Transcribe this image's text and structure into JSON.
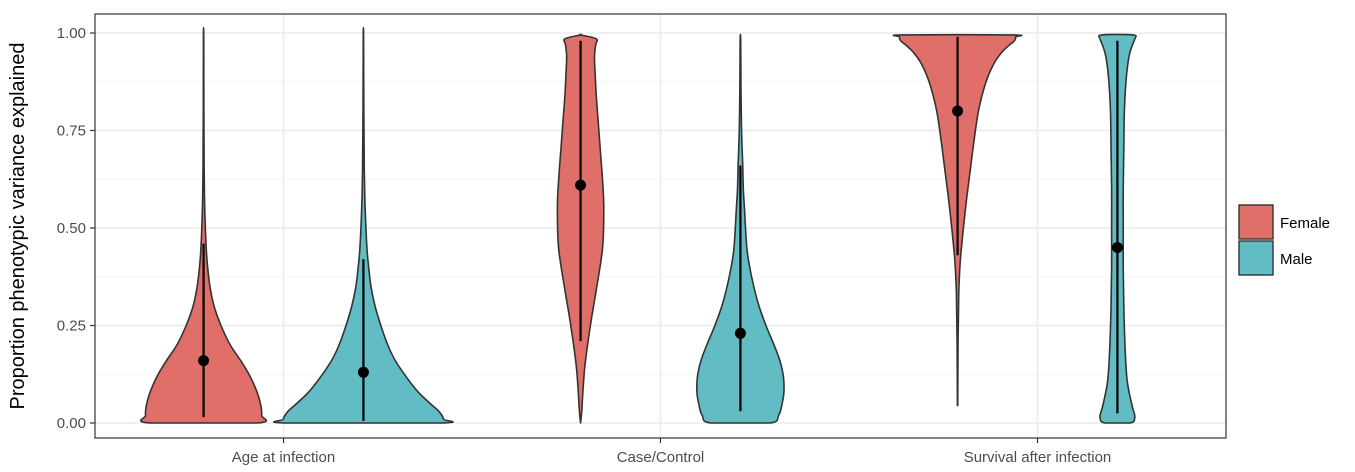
{
  "chart_data": {
    "type": "violin",
    "title": "",
    "xlabel": "",
    "ylabel": "Proportion phenotypic variance explained",
    "ylim": [
      0,
      1
    ],
    "yticks": [
      "0.00",
      "0.25",
      "0.50",
      "0.75",
      "1.00"
    ],
    "categories": [
      "Age at infection",
      "Case/Control",
      "Survival after infection"
    ],
    "grid": true,
    "legend_position": "right",
    "series": [
      {
        "name": "Female",
        "color": "#e06f69",
        "medians": [
          0.16,
          0.61,
          0.8
        ],
        "interval_low": [
          0.015,
          0.21,
          0.43
        ],
        "interval_high": [
          0.46,
          0.98,
          0.99
        ],
        "violin_range": [
          [
            0.0,
            0.99
          ],
          [
            0.0,
            0.995
          ],
          [
            0.045,
            0.995
          ]
        ]
      },
      {
        "name": "Male",
        "color": "#62bcc4",
        "medians": [
          0.13,
          0.23,
          0.45
        ],
        "interval_low": [
          0.005,
          0.03,
          0.025
        ],
        "interval_high": [
          0.42,
          0.66,
          0.98
        ],
        "violin_range": [
          [
            0.0,
            0.99
          ],
          [
            0.0,
            0.98
          ],
          [
            0.0,
            0.995
          ]
        ]
      }
    ]
  },
  "colors": {
    "female": "#e06f69",
    "male": "#62bcc4",
    "grid_major": "#ebebeb",
    "grid_minor": "#f5f5f5",
    "panel_border": "#333333"
  }
}
